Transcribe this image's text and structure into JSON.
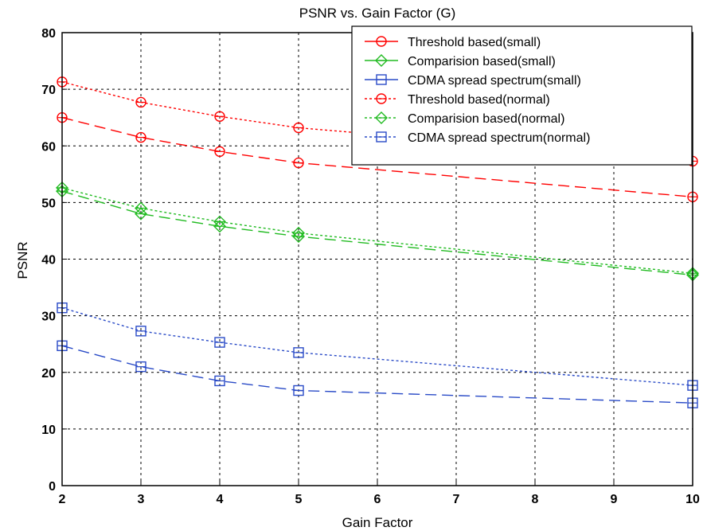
{
  "chart_data": {
    "type": "line",
    "title": "PSNR vs. Gain Factor (G)",
    "xlabel": "Gain Factor",
    "ylabel": "PSNR",
    "xlim": [
      2,
      10
    ],
    "ylim": [
      0,
      80
    ],
    "xticks": [
      2,
      3,
      4,
      5,
      6,
      7,
      8,
      9,
      10
    ],
    "yticks": [
      0,
      10,
      20,
      30,
      40,
      50,
      60,
      70,
      80
    ],
    "grid": true,
    "legend_position": "top-right",
    "x": [
      2,
      3,
      4,
      5,
      10
    ],
    "series": [
      {
        "name": "Threshold based(small)",
        "color": "#ff0000",
        "marker": "circle",
        "line": "long-dash",
        "values": [
          65,
          61.5,
          59,
          57,
          51
        ]
      },
      {
        "name": "Comparision based(small)",
        "color": "#22bb22",
        "marker": "diamond",
        "line": "long-dash",
        "values": [
          52,
          48,
          45.8,
          44,
          37.2
        ]
      },
      {
        "name": "CDMA spread spectrum(small)",
        "color": "#2a4bc7",
        "marker": "square",
        "line": "long-dash",
        "values": [
          24.7,
          21,
          18.5,
          16.8,
          14.6
        ]
      },
      {
        "name": "Threshold based(normal)",
        "color": "#ff0000",
        "marker": "circle",
        "line": "dotted",
        "values": [
          71.3,
          67.7,
          65.2,
          63.2,
          57.3
        ]
      },
      {
        "name": "Comparision based(normal)",
        "color": "#22bb22",
        "marker": "diamond",
        "line": "dotted",
        "values": [
          52.6,
          49,
          46.6,
          44.6,
          37.5
        ]
      },
      {
        "name": "CDMA spread spectrum(normal)",
        "color": "#2a4bc7",
        "marker": "square",
        "line": "dotted",
        "values": [
          31.4,
          27.3,
          25.3,
          23.5,
          17.7
        ]
      }
    ]
  }
}
